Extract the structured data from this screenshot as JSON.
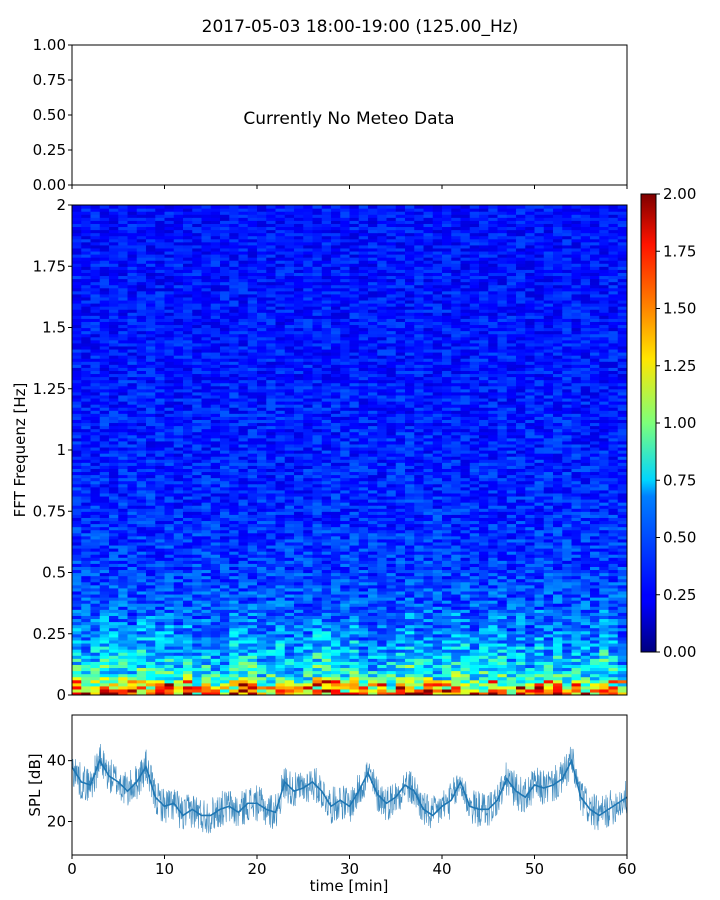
{
  "title": "2017-05-03 18:00-19:00 (125.00_Hz)",
  "colors": {
    "spl_line": "#1f77b4",
    "axes": "#000000",
    "colormap": "jet"
  },
  "chart_data": [
    {
      "type": "line",
      "panel": "meteo",
      "message": "Currently No Meteo Data",
      "ylim": [
        0.0,
        1.0
      ],
      "y_ticks": [
        "0.00",
        "0.25",
        "0.50",
        "0.75",
        "1.00"
      ],
      "series": []
    },
    {
      "type": "heatmap",
      "panel": "spectrogram",
      "ylabel": "FFT Frequenz [Hz]",
      "xlim": [
        0,
        60
      ],
      "ylim": [
        0,
        2
      ],
      "y_ticks": [
        "0",
        "0.25",
        "0.5",
        "0.75",
        "1",
        "1.25",
        "1.5",
        "1.75",
        "2"
      ],
      "colorbar": {
        "min": 0.0,
        "max": 2.0,
        "ticks": [
          "0.00",
          "0.25",
          "0.50",
          "0.75",
          "1.00",
          "1.25",
          "1.50",
          "1.75",
          "2.00"
        ]
      },
      "freq_profile": [
        [
          0.0,
          1.55
        ],
        [
          0.02,
          1.3
        ],
        [
          0.05,
          0.95
        ],
        [
          0.1,
          0.72
        ],
        [
          0.2,
          0.55
        ],
        [
          0.3,
          0.45
        ],
        [
          0.5,
          0.37
        ],
        [
          0.75,
          0.33
        ],
        [
          1.0,
          0.31
        ],
        [
          1.5,
          0.29
        ],
        [
          2.0,
          0.28
        ]
      ]
    },
    {
      "type": "line",
      "panel": "spl",
      "ylabel": "SPL [dB]",
      "xlabel": "time [min]",
      "xlim": [
        0,
        60
      ],
      "ylim": [
        9,
        55
      ],
      "x_ticks": [
        "0",
        "10",
        "20",
        "30",
        "40",
        "50",
        "60"
      ],
      "y_ticks": [
        "20",
        "40"
      ],
      "series": [
        {
          "x": [
            0,
            1,
            2,
            3,
            4,
            5,
            6,
            7,
            8,
            9,
            10,
            11,
            12,
            13,
            14,
            15,
            16,
            17,
            18,
            19,
            20,
            21,
            22,
            23,
            24,
            25,
            26,
            27,
            28,
            29,
            30,
            31,
            32,
            33,
            34,
            35,
            36,
            37,
            38,
            39,
            40,
            41,
            42,
            43,
            44,
            45,
            46,
            47,
            48,
            49,
            50,
            51,
            52,
            53,
            54,
            55,
            56,
            57,
            58,
            59,
            60
          ],
          "y": [
            38,
            33,
            32,
            40,
            35,
            33,
            30,
            33,
            38,
            28,
            25,
            26,
            22,
            24,
            22,
            22,
            24,
            25,
            23,
            26,
            26,
            24,
            23,
            33,
            30,
            31,
            33,
            30,
            25,
            27,
            25,
            30,
            36,
            29,
            26,
            28,
            32,
            30,
            24,
            22,
            25,
            27,
            33,
            25,
            24,
            24,
            27,
            34,
            30,
            28,
            32,
            31,
            32,
            34,
            40,
            28,
            24,
            22,
            24,
            26,
            28
          ]
        }
      ]
    }
  ]
}
